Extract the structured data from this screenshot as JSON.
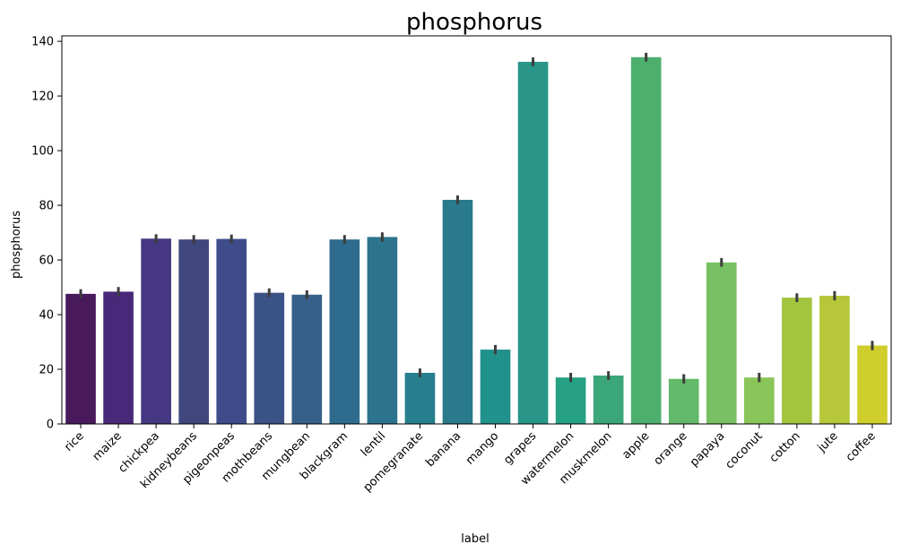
{
  "chart_data": {
    "type": "bar",
    "title": "phosphorus",
    "xlabel": "label",
    "ylabel": "phosphorus",
    "ylim": [
      0,
      142
    ],
    "yticks": [
      0,
      20,
      40,
      60,
      80,
      100,
      120,
      140
    ],
    "grid": false,
    "palette": "viridis",
    "categories": [
      "rice",
      "maize",
      "chickpea",
      "kidneybeans",
      "pigeonpeas",
      "mothbeans",
      "mungbean",
      "blackgram",
      "lentil",
      "pomegranate",
      "banana",
      "mango",
      "grapes",
      "watermelon",
      "muskmelon",
      "apple",
      "orange",
      "papaya",
      "coconut",
      "cotton",
      "jute",
      "coffee"
    ],
    "values": [
      47.6,
      48.4,
      67.8,
      67.5,
      67.7,
      48.0,
      47.3,
      67.5,
      68.4,
      18.7,
      82.0,
      27.2,
      132.5,
      17.0,
      17.7,
      134.2,
      16.5,
      59.1,
      17.0,
      46.2,
      46.9,
      28.7
    ],
    "errors": [
      1.7,
      1.7,
      1.6,
      1.6,
      1.6,
      1.6,
      1.6,
      1.6,
      1.7,
      1.6,
      1.6,
      1.7,
      1.6,
      1.7,
      1.6,
      1.6,
      1.7,
      1.6,
      1.7,
      1.6,
      1.7,
      1.7
    ],
    "colors": [
      "#481a5c",
      "#482878",
      "#453781",
      "#40477e",
      "#3e4c8a",
      "#3b5287",
      "#366089",
      "#2e6b8e",
      "#2c738e",
      "#277f8e",
      "#297a8a",
      "#21918c",
      "#2a968a",
      "#26a184",
      "#3aa67a",
      "#4caf6e",
      "#62b96a",
      "#77c063",
      "#89c558",
      "#a3c43e",
      "#b6c73a",
      "#d0ce2c"
    ]
  }
}
